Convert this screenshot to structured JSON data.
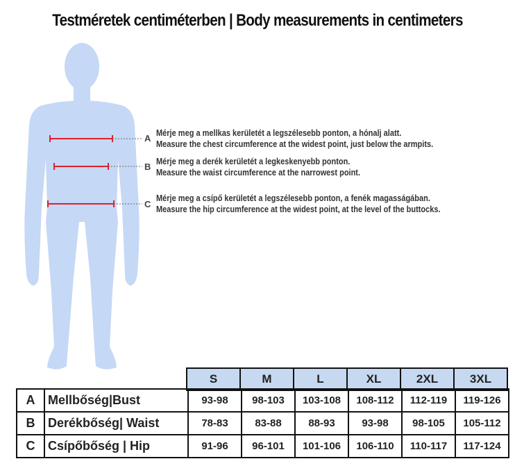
{
  "title": "Testméretek centiméterben | Body measurements in centimeters",
  "colors": {
    "figure": "#c5d8f5",
    "measure_line": "#e0202a",
    "header_fill": "#c6d9f1"
  },
  "measurements": [
    {
      "letter": "A",
      "hu": "Mérje meg a mellkas kerületét a legszélesebb ponton, a hónalj alatt.",
      "en": "Measure the chest circumference at the widest point, just below the armpits."
    },
    {
      "letter": "B",
      "hu": "Mérje meg a derék kerületét a legkeskenyebb ponton.",
      "en": "Measure the waist circumference at the narrowest point."
    },
    {
      "letter": "C",
      "hu": "Mérje meg a csípő kerületét a legszélesebb ponton, a fenék magasságában.",
      "en": "Measure the hip circumference at the widest point, at the level of the buttocks."
    }
  ],
  "table": {
    "sizes": [
      "S",
      "M",
      "L",
      "XL",
      "2XL",
      "3XL"
    ],
    "rows": [
      {
        "letter": "A",
        "label": "Mellbőség|Bust",
        "values": [
          "93-98",
          "98-103",
          "103-108",
          "108-112",
          "112-119",
          "119-126"
        ]
      },
      {
        "letter": "B",
        "label": "Derékbőség| Waist",
        "values": [
          "78-83",
          "83-88",
          "88-93",
          "93-98",
          "98-105",
          "105-112"
        ]
      },
      {
        "letter": "C",
        "label": "Csípőbőség | Hip",
        "values": [
          "91-96",
          "96-101",
          "101-106",
          "106-110",
          "110-117",
          "117-124"
        ]
      }
    ]
  }
}
